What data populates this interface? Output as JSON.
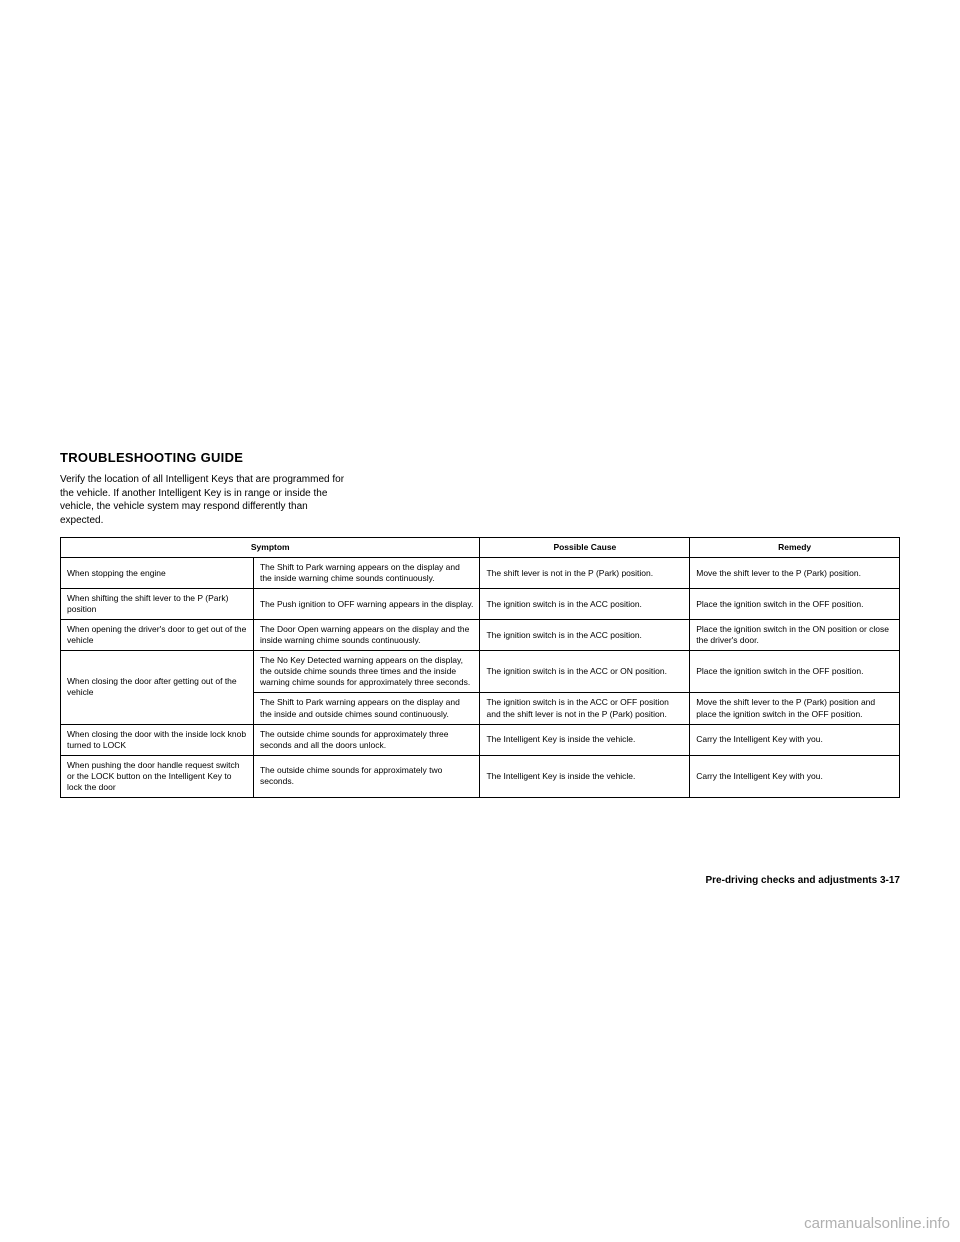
{
  "section_title": "TROUBLESHOOTING GUIDE",
  "intro": "Verify the location of all Intelligent Keys that are programmed for the vehicle. If another Intelligent Key is in range or inside the vehicle, the vehicle system may respond differently than expected.",
  "table": {
    "headers": {
      "symptom": "Symptom",
      "cause": "Possible Cause",
      "remedy": "Remedy"
    },
    "rows": [
      {
        "symptom_a": "When stopping the engine",
        "symptom_b": "The Shift to Park warning appears on the display and the inside warning chime sounds continuously.",
        "cause": "The shift lever is not in the P (Park) position.",
        "remedy": "Move the shift lever to the P (Park) position."
      },
      {
        "symptom_a": "When shifting the shift lever to the P (Park) position",
        "symptom_b": "The Push ignition to OFF warning appears in the display.",
        "cause": "The ignition switch is in the ACC position.",
        "remedy": "Place the ignition switch in the OFF position."
      },
      {
        "symptom_a": "When opening the driver's door to get out of the vehicle",
        "symptom_b": "The Door Open warning appears on the display and the inside warning chime sounds continuously.",
        "cause": "The ignition switch is in the ACC position.",
        "remedy": "Place the ignition switch in the ON position or close the driver's door."
      },
      {
        "symptom_a": "When closing the door after getting out of the vehicle",
        "symptom_b": "The No Key Detected warning appears on the display, the outside chime sounds three times and the inside warning chime sounds for approximately three seconds.",
        "cause": "The ignition switch is in the ACC or ON position.",
        "remedy": "Place the ignition switch in the OFF position."
      },
      {
        "symptom_a_rowspan": true,
        "symptom_b": "The Shift to Park warning appears on the display and the inside and outside chimes sound continuously.",
        "cause": "The ignition switch is in the ACC or OFF position and the shift lever is not in the P (Park) position.",
        "remedy": "Move the shift lever to the P (Park) position and place the ignition switch in the OFF position."
      },
      {
        "symptom_a": "When closing the door with the inside lock knob turned to LOCK",
        "symptom_b": "The outside chime sounds for approximately three seconds and all the doors unlock.",
        "cause": "The Intelligent Key is inside the vehicle.",
        "remedy": "Carry the Intelligent Key with you."
      },
      {
        "symptom_a": "When pushing the door handle request switch or the LOCK button on the Intelligent Key to lock the door",
        "symptom_b": "The outside chime sounds for approximately two seconds.",
        "cause": "The Intelligent Key is inside the vehicle.",
        "remedy": "Carry the Intelligent Key with you."
      }
    ]
  },
  "footer": "Pre-driving checks and adjustments    3-17",
  "watermark": "carmanualsonline.info",
  "colors": {
    "text": "#000000",
    "background": "#ffffff",
    "watermark": "#b0b0b0",
    "border": "#000000"
  }
}
